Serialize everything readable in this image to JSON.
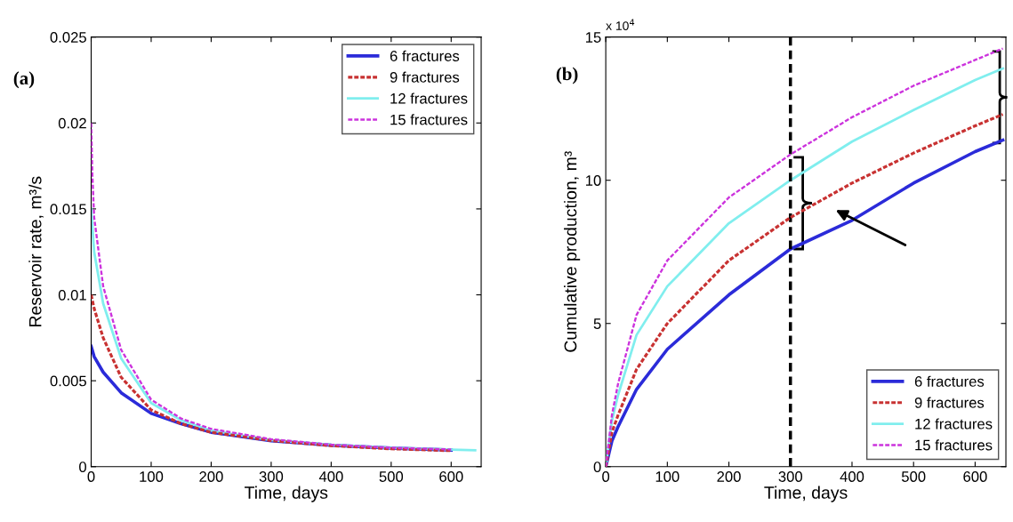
{
  "chart_data": [
    {
      "type": "line",
      "xlabel": "Time, days",
      "ylabel": "Reservoir rate, m³/s",
      "annotations": [
        "(a)"
      ],
      "xlim": [
        0,
        650
      ],
      "xticks": [
        0,
        100,
        200,
        300,
        400,
        500,
        600
      ],
      "ylim": [
        0,
        0.025
      ],
      "yticks": [
        0,
        0.005,
        0.01,
        0.015,
        0.02,
        0.025
      ],
      "grid": false,
      "legend": "top right",
      "series": [
        {
          "name": "6 fractures",
          "color": "#2b2bd9",
          "line_style": "solid",
          "x": [
            0,
            5,
            20,
            50,
            100,
            150,
            200,
            300,
            400,
            500,
            600
          ],
          "values": [
            0.007,
            0.0064,
            0.0055,
            0.0043,
            0.0031,
            0.0025,
            0.002,
            0.0015,
            0.00125,
            0.00108,
            0.00097
          ]
        },
        {
          "name": "9 fractures",
          "color": "#c83232",
          "line_style": "dashed",
          "x": [
            0,
            5,
            20,
            50,
            100,
            150,
            200,
            300,
            400,
            500,
            600
          ],
          "values": [
            0.01,
            0.0092,
            0.0075,
            0.0052,
            0.0033,
            0.0025,
            0.002,
            0.00152,
            0.00122,
            0.00104,
            0.00093
          ]
        },
        {
          "name": "12 fractures",
          "color": "#80eeee",
          "line_style": "solid",
          "x": [
            0,
            5,
            20,
            50,
            100,
            150,
            200,
            300,
            400,
            500,
            640
          ],
          "values": [
            0.015,
            0.0125,
            0.0095,
            0.0063,
            0.0037,
            0.0027,
            0.0021,
            0.00155,
            0.00127,
            0.0011,
            0.00095
          ]
        },
        {
          "name": "15 fractures",
          "color": "#cc33dd",
          "line_style": "dashed",
          "x": [
            0,
            2,
            5,
            20,
            50,
            100,
            150,
            200,
            300,
            400,
            500,
            600
          ],
          "values": [
            0.02,
            0.017,
            0.0145,
            0.0105,
            0.0068,
            0.0039,
            0.0028,
            0.0022,
            0.0016,
            0.00128,
            0.0011,
            0.001
          ]
        }
      ]
    },
    {
      "type": "line",
      "xlabel": "Time, days",
      "ylabel": "Cumulative production, m³",
      "annotations": [
        "(b)",
        "x 10$^{4}$"
      ],
      "xlim": [
        0,
        650
      ],
      "xticks": [
        0,
        100,
        200,
        300,
        400,
        500,
        600
      ],
      "ylim": [
        0,
        15
      ],
      "yticks": [
        0,
        5,
        10,
        15
      ],
      "grid": false,
      "legend": "bottom right",
      "ref_lines": [
        {
          "axis": "x",
          "value": 300,
          "label": null,
          "color": "#000000",
          "line_style": "dashed"
        }
      ],
      "series": [
        {
          "name": "6 fractures",
          "color": "#2b2bd9",
          "line_style": "solid",
          "x": [
            0,
            10,
            20,
            50,
            100,
            200,
            300,
            400,
            500,
            600,
            645
          ],
          "values": [
            0,
            0.9,
            1.4,
            2.7,
            4.1,
            6.0,
            7.6,
            8.6,
            9.9,
            11.0,
            11.4
          ]
        },
        {
          "name": "9 fractures",
          "color": "#c83232",
          "line_style": "dashed",
          "x": [
            0,
            10,
            20,
            50,
            100,
            200,
            300,
            400,
            500,
            600,
            645
          ],
          "values": [
            0,
            1.2,
            1.8,
            3.4,
            5.0,
            7.2,
            8.7,
            9.9,
            10.95,
            11.9,
            12.3
          ]
        },
        {
          "name": "12 fractures",
          "color": "#80eeee",
          "line_style": "solid",
          "x": [
            0,
            10,
            20,
            50,
            100,
            200,
            300,
            400,
            500,
            600,
            645
          ],
          "values": [
            0,
            1.6,
            2.5,
            4.6,
            6.3,
            8.5,
            10.0,
            11.35,
            12.45,
            13.5,
            13.9
          ]
        },
        {
          "name": "15 fractures",
          "color": "#cc33dd",
          "line_style": "dashed",
          "x": [
            0,
            10,
            20,
            50,
            100,
            200,
            300,
            400,
            500,
            600,
            645
          ],
          "values": [
            0,
            1.8,
            2.9,
            5.3,
            7.2,
            9.4,
            10.9,
            12.2,
            13.3,
            14.2,
            14.6
          ]
        }
      ]
    }
  ]
}
